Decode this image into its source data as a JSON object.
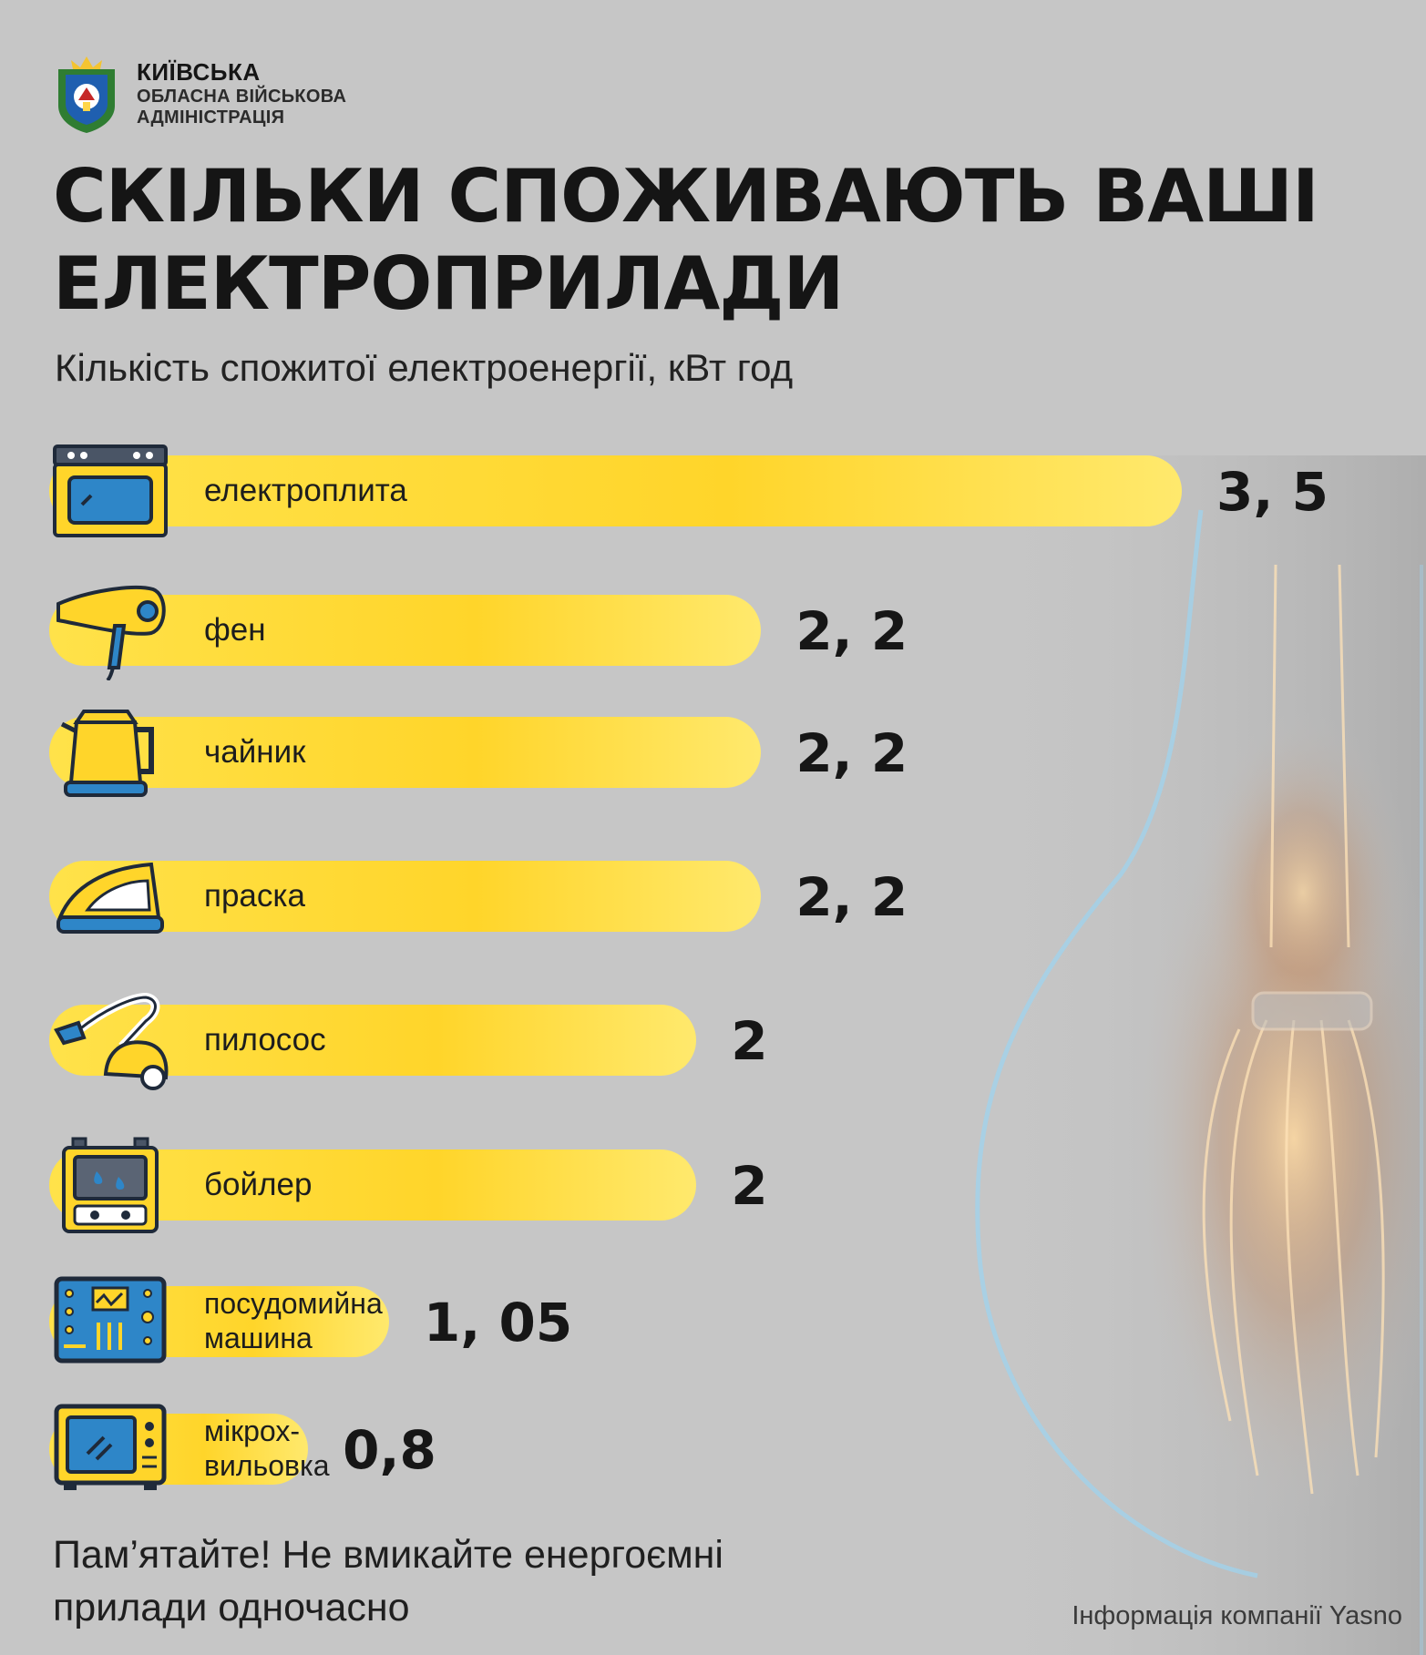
{
  "org": {
    "line1": "КИЇВСЬКА",
    "line2": "ОБЛАСНА ВІЙСЬКОВА",
    "line3": "АДМІНІСТРАЦІЯ"
  },
  "title_line1": "СКІЛЬКИ СПОЖИВАЮТЬ ВАШІ",
  "title_line2": "ЕЛЕКТРОПРИЛАДИ",
  "subtitle": "Кількість спожитої електроенергії, кВт год",
  "note_line1": "Пам’ятайте! Не вмикайте енергоємні",
  "note_line2": "прилади одночасно",
  "source": "Інформація компанії Yasno",
  "colors": {
    "bar": "#ffd52a",
    "icon_blue": "#2e86c8",
    "outline": "#1f2a3a",
    "background": "#c6c6c6"
  },
  "chart_data": {
    "type": "bar",
    "orientation": "horizontal",
    "unit": "кВт год",
    "categories": [
      {
        "label": "електроплита",
        "lines": [
          "електроплита"
        ],
        "icon": "stove-icon",
        "value": 3.5,
        "value_label": "3, 5"
      },
      {
        "label": "фен",
        "lines": [
          "фен"
        ],
        "icon": "hair-dryer-icon",
        "value": 2.2,
        "value_label": "2, 2"
      },
      {
        "label": "чайник",
        "lines": [
          "чайник"
        ],
        "icon": "kettle-icon",
        "value": 2.2,
        "value_label": "2, 2"
      },
      {
        "label": "праска",
        "lines": [
          "праска"
        ],
        "icon": "iron-icon",
        "value": 2.2,
        "value_label": "2, 2"
      },
      {
        "label": "пилосос",
        "lines": [
          "пилосос"
        ],
        "icon": "vacuum-cleaner-icon",
        "value": 2,
        "value_label": "2"
      },
      {
        "label": "бойлер",
        "lines": [
          "бойлер"
        ],
        "icon": "boiler-icon",
        "value": 2,
        "value_label": "2"
      },
      {
        "label": "посудомийна машина",
        "lines": [
          "посудомийна",
          "машина"
        ],
        "icon": "dishwasher-icon",
        "value": 1.05,
        "value_label": "1, 05"
      },
      {
        "label": "мікрохвильовка",
        "lines": [
          "мікрох-",
          "вильовка"
        ],
        "icon": "microwave-icon",
        "value": 0.8,
        "value_label": "0,8"
      }
    ]
  }
}
